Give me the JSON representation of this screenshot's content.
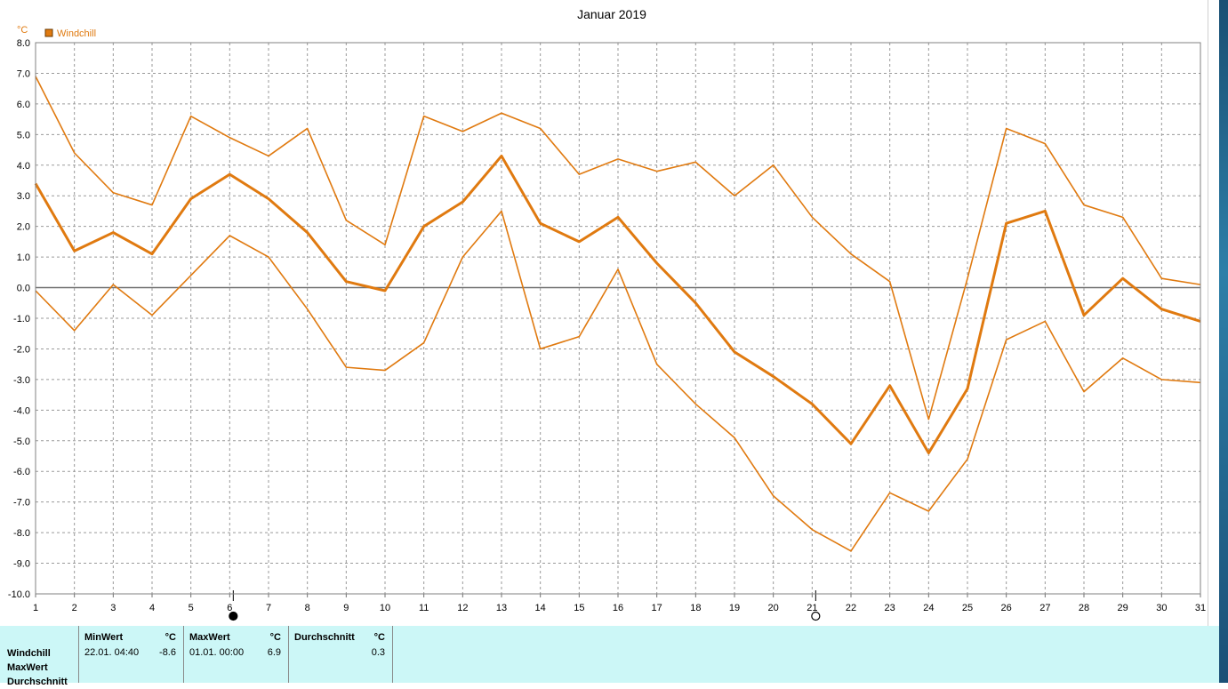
{
  "chart_data": {
    "type": "line",
    "title": "Januar 2019",
    "y_unit": "°C",
    "ylim": [
      -10,
      8
    ],
    "y_ticks": [
      "8.0",
      "7.0",
      "6.0",
      "5.0",
      "4.0",
      "3.0",
      "2.0",
      "1.0",
      "0.0",
      "-1.0",
      "-2.0",
      "-3.0",
      "-4.0",
      "-5.0",
      "-6.0",
      "-7.0",
      "-8.0",
      "-9.0",
      "-10.0"
    ],
    "x": [
      1,
      2,
      3,
      4,
      5,
      6,
      7,
      8,
      9,
      10,
      11,
      12,
      13,
      14,
      15,
      16,
      17,
      18,
      19,
      20,
      21,
      22,
      23,
      24,
      25,
      26,
      27,
      28,
      29,
      30,
      31
    ],
    "grid": true,
    "legend": {
      "label": "Windchill",
      "position": "top-left",
      "color": "#e07a10"
    },
    "series": [
      {
        "name": "MaxWert",
        "values": [
          6.9,
          4.4,
          3.1,
          2.7,
          5.6,
          4.9,
          4.3,
          5.2,
          2.2,
          1.4,
          5.6,
          5.1,
          5.7,
          5.2,
          3.7,
          4.2,
          3.8,
          4.1,
          3.0,
          4.0,
          2.3,
          1.1,
          0.2,
          -4.3,
          0.3,
          5.2,
          4.7,
          2.7,
          2.3,
          0.3,
          0.1
        ]
      },
      {
        "name": "Windchill",
        "values": [
          3.4,
          1.2,
          1.8,
          1.1,
          2.9,
          3.7,
          2.9,
          1.8,
          0.2,
          -0.1,
          2.0,
          2.8,
          4.3,
          2.1,
          1.5,
          2.3,
          0.8,
          -0.5,
          -2.1,
          -2.9,
          -3.8,
          -5.1,
          -3.2,
          -5.4,
          -3.3,
          2.1,
          2.5,
          -0.9,
          0.3,
          -0.7,
          -1.1
        ]
      },
      {
        "name": "MinWert",
        "values": [
          -0.1,
          -1.4,
          0.1,
          -0.9,
          0.4,
          1.7,
          1.0,
          -0.7,
          -2.6,
          -2.7,
          -1.8,
          1.0,
          2.5,
          -2.0,
          -1.6,
          0.6,
          -2.5,
          -3.8,
          -4.9,
          -6.8,
          -7.9,
          -8.6,
          -6.7,
          -7.3,
          -5.6,
          -1.7,
          -1.1,
          -3.4,
          -2.3,
          -3.0,
          -3.1
        ]
      }
    ],
    "moon_markers": [
      {
        "day": 6,
        "phase": "new-moon"
      },
      {
        "day": 21,
        "phase": "full-moon"
      }
    ]
  },
  "stats": {
    "row_labels": [
      "Windchill",
      "MaxWert",
      "Durchschnitt"
    ],
    "columns": [
      {
        "header": "MinWert",
        "unit": "°C",
        "date": "22.01.  04:40",
        "value": "-8.6"
      },
      {
        "header": "MaxWert",
        "unit": "°C",
        "date": "01.01.  00:00",
        "value": "6.9"
      },
      {
        "header": "Durchschnitt",
        "unit": "°C",
        "date": "",
        "value": "0.3"
      }
    ]
  },
  "colors": {
    "line": "#e07a10",
    "panel": "#ccf7f7"
  }
}
